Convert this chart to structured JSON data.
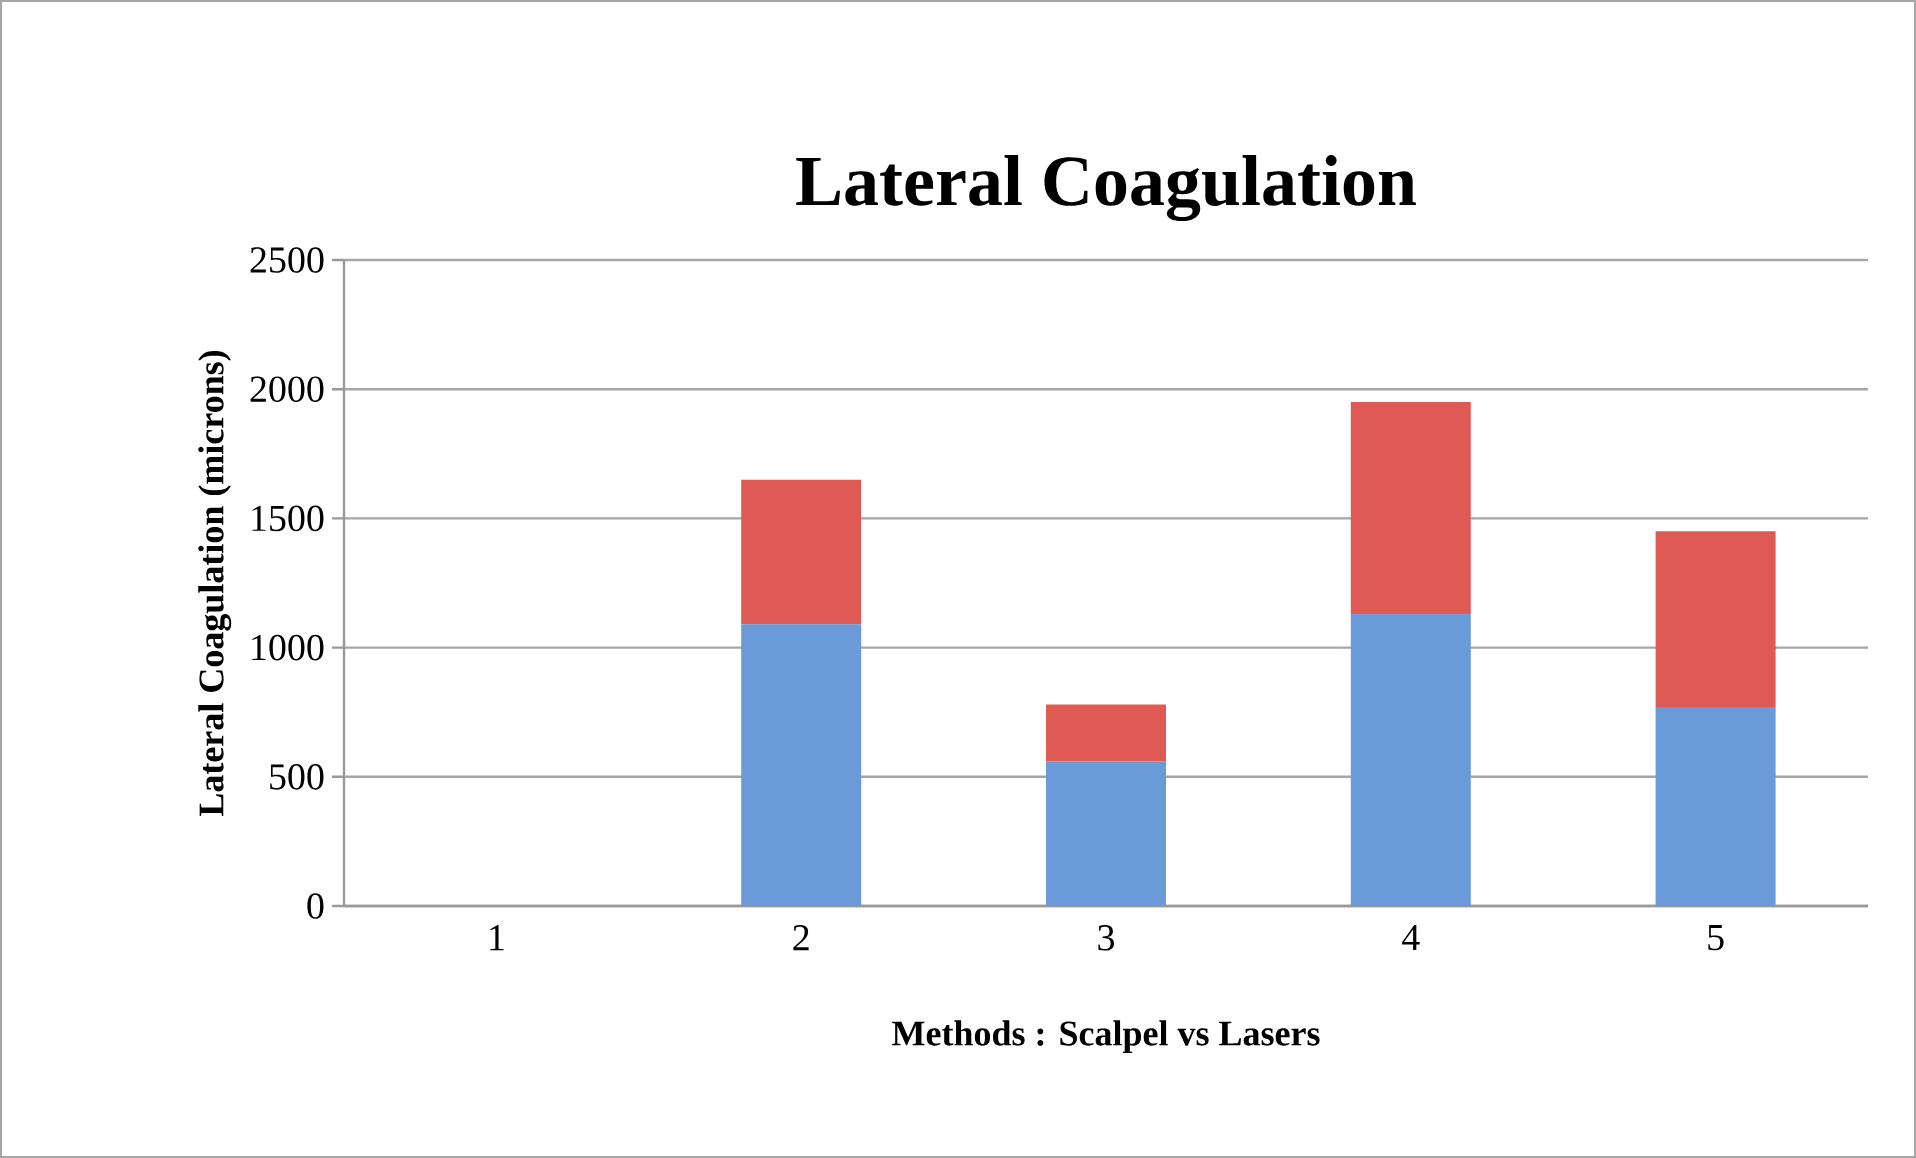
{
  "chart_data": {
    "type": "bar",
    "title": "Lateral Coagulation",
    "xlabel": "Methods : Scalpel vs Lasers",
    "ylabel": "Lateral Coagulation (microns)",
    "categories": [
      "1",
      "2",
      "3",
      "4",
      "5"
    ],
    "stacked": true,
    "series": [
      {
        "color": "#6a9bd8",
        "values": [
          0,
          1090,
          560,
          1130,
          770
        ]
      },
      {
        "color": "#e05a55",
        "values": [
          0,
          560,
          220,
          820,
          680
        ]
      }
    ],
    "ylim": [
      0,
      2500
    ],
    "yticks": [
      0,
      500,
      1000,
      1500,
      2000,
      2500
    ],
    "grid": "y"
  }
}
